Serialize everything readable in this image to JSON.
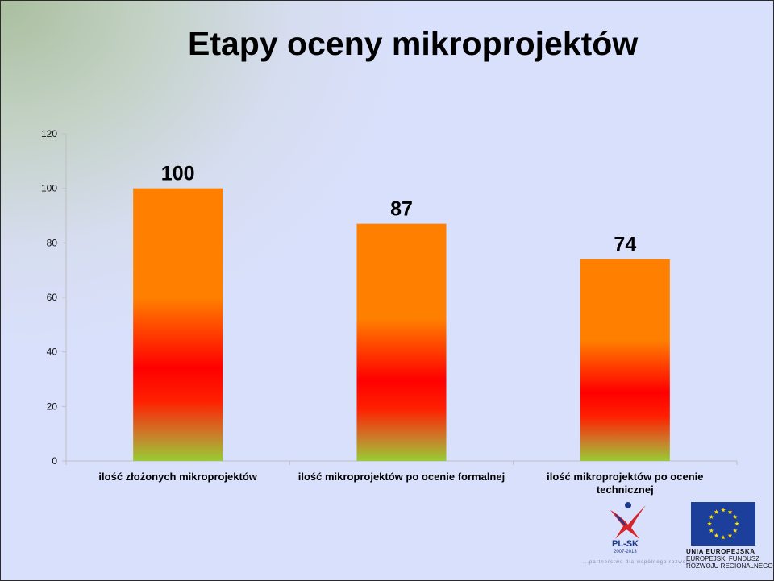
{
  "slide": {
    "title": "Etapy oceny mikroprojektów"
  },
  "chart_data": {
    "type": "bar",
    "title": "",
    "xlabel": "",
    "ylabel": "",
    "ylim": [
      0,
      120
    ],
    "y_ticks": [
      0,
      20,
      40,
      60,
      80,
      100,
      120
    ],
    "y_tick_labels": [
      "0",
      "20",
      "40",
      "60",
      "80",
      "100",
      "120"
    ],
    "categories": [
      [
        "ilość złożonych mikroprojektów"
      ],
      [
        "ilość mikroprojektów po ocenie formalnej"
      ],
      [
        "ilość mikroprojektów po ocenie",
        "technicznej"
      ]
    ],
    "values": [
      100,
      87,
      74
    ],
    "data_labels": [
      "100",
      "87",
      "74"
    ],
    "grid": false,
    "legend": "none",
    "colors": {
      "bar_top": "#ff8000",
      "bar_mid": "#ff0000",
      "bar_bottom": "#99cc33",
      "axis": "#bfbfbf"
    }
  },
  "footer": {
    "tagline": "...partnerstwo dla wspólnego rozwoju...",
    "program_logo": {
      "name": "PL-SK",
      "years": "2007-2013"
    },
    "eu_logo": {
      "line1": "UNIA EUROPEJSKA",
      "line2": "EUROPEJSKI FUNDUSZ",
      "line3": "ROZWOJU REGIONALNEGO"
    }
  }
}
